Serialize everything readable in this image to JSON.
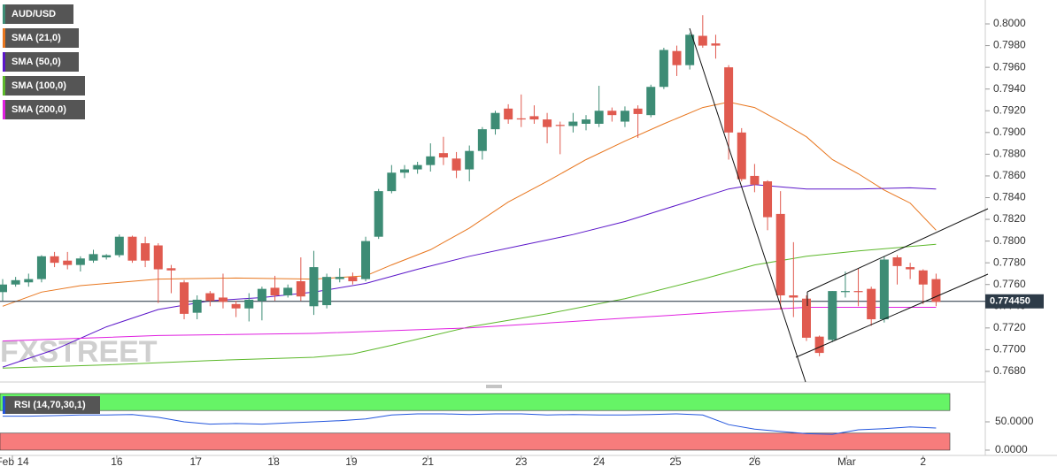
{
  "chart_data": [
    {
      "type": "candlestick",
      "symbol": "AUD/USD",
      "watermark": "FXSTREET",
      "up_color": "#3d8c75",
      "down_color": "#e05a4f",
      "open": [
        0.7753,
        0.776,
        0.7762,
        0.7765,
        0.7786,
        0.7782,
        0.7778,
        0.7782,
        0.7785,
        0.7787,
        0.7804,
        0.7798,
        0.7796,
        0.7775,
        0.7762,
        0.7734,
        0.7752,
        0.7748,
        0.7742,
        0.7738,
        0.7745,
        0.7757,
        0.775,
        0.7763,
        0.774,
        0.7741,
        0.7765,
        0.7767,
        0.7765,
        0.7804,
        0.7846,
        0.7863,
        0.7866,
        0.787,
        0.7881,
        0.7876,
        0.7866,
        0.7883,
        0.7903,
        0.7922,
        0.7913,
        0.7915,
        0.7912,
        0.7907,
        0.7906,
        0.7908,
        0.7908,
        0.792,
        0.791,
        0.7922,
        0.7916,
        0.7942,
        0.7975,
        0.7962,
        0.7989,
        0.7982,
        0.796,
        0.79,
        0.786,
        0.7855,
        0.7825,
        0.775,
        0.7747,
        0.7712,
        0.7709,
        0.7753,
        0.7754,
        0.7756,
        0.7728,
        0.7785,
        0.7776,
        0.7773,
        0.7765
      ],
      "high": [
        0.7765,
        0.7767,
        0.777,
        0.7787,
        0.779,
        0.779,
        0.7786,
        0.7792,
        0.7788,
        0.7806,
        0.7805,
        0.7804,
        0.7798,
        0.7778,
        0.7764,
        0.775,
        0.7754,
        0.777,
        0.7745,
        0.7752,
        0.7758,
        0.7768,
        0.776,
        0.7785,
        0.7791,
        0.777,
        0.7775,
        0.7771,
        0.7804,
        0.7848,
        0.787,
        0.787,
        0.7873,
        0.789,
        0.7896,
        0.7882,
        0.7888,
        0.7905,
        0.792,
        0.7926,
        0.7935,
        0.7925,
        0.7918,
        0.791,
        0.7918,
        0.7916,
        0.7943,
        0.7923,
        0.7924,
        0.7925,
        0.7944,
        0.7978,
        0.798,
        0.7992,
        0.8008,
        0.799,
        0.7962,
        0.7904,
        0.7871,
        0.7856,
        0.7846,
        0.7799,
        0.775,
        0.7713,
        0.7754,
        0.7772,
        0.7775,
        0.7758,
        0.7786,
        0.7787,
        0.778,
        0.7774,
        0.777
      ],
      "low": [
        0.7745,
        0.7758,
        0.7758,
        0.7762,
        0.7776,
        0.7774,
        0.7772,
        0.778,
        0.7783,
        0.7785,
        0.778,
        0.7776,
        0.7743,
        0.7752,
        0.7728,
        0.7728,
        0.774,
        0.7738,
        0.773,
        0.7726,
        0.7727,
        0.7745,
        0.7748,
        0.7745,
        0.7732,
        0.7738,
        0.7762,
        0.776,
        0.7763,
        0.7802,
        0.7844,
        0.7858,
        0.7862,
        0.7864,
        0.787,
        0.7858,
        0.7855,
        0.7875,
        0.7898,
        0.7908,
        0.7905,
        0.7908,
        0.789,
        0.788,
        0.79,
        0.7902,
        0.7905,
        0.791,
        0.7905,
        0.7895,
        0.7914,
        0.794,
        0.7952,
        0.7958,
        0.7978,
        0.7968,
        0.7875,
        0.7855,
        0.7845,
        0.781,
        0.7737,
        0.773,
        0.7708,
        0.7694,
        0.7707,
        0.7748,
        0.774,
        0.7722,
        0.7725,
        0.776,
        0.7765,
        0.7742,
        0.774
      ],
      "close": [
        0.776,
        0.7764,
        0.7765,
        0.7786,
        0.778,
        0.7778,
        0.7784,
        0.7788,
        0.7787,
        0.7804,
        0.7782,
        0.7782,
        0.7774,
        0.7773,
        0.7733,
        0.7746,
        0.7745,
        0.7744,
        0.7738,
        0.7746,
        0.7756,
        0.775,
        0.7757,
        0.7749,
        0.7776,
        0.7767,
        0.7767,
        0.7763,
        0.78,
        0.7846,
        0.7863,
        0.7866,
        0.787,
        0.7878,
        0.7877,
        0.7865,
        0.7883,
        0.7903,
        0.7918,
        0.7912,
        0.7912,
        0.7912,
        0.7905,
        0.7906,
        0.791,
        0.7912,
        0.792,
        0.7916,
        0.792,
        0.7917,
        0.7942,
        0.7976,
        0.7962,
        0.799,
        0.798,
        0.798,
        0.79,
        0.7857,
        0.7852,
        0.7822,
        0.775,
        0.7748,
        0.7711,
        0.7697,
        0.7754,
        0.7754,
        0.7753,
        0.7728,
        0.7783,
        0.7777,
        0.7774,
        0.776,
        0.7744
      ],
      "overlays": [
        {
          "name": "SMA (21,0)",
          "color": "#e8761e",
          "x": [
            0,
            3,
            6,
            12,
            18,
            24,
            28,
            30,
            33,
            36,
            39,
            42,
            45,
            48,
            51,
            54,
            56,
            58,
            60,
            62,
            64,
            66,
            68,
            70,
            72
          ],
          "values": [
            0.774,
            0.7753,
            0.7759,
            0.7765,
            0.7766,
            0.7765,
            0.7768,
            0.7778,
            0.7792,
            0.7812,
            0.7836,
            0.7855,
            0.7875,
            0.7892,
            0.7908,
            0.7923,
            0.7928,
            0.7923,
            0.791,
            0.7896,
            0.7875,
            0.7862,
            0.7847,
            0.7835,
            0.781
          ]
        },
        {
          "name": "SMA (50,0)",
          "color": "#5b16c9",
          "x": [
            0,
            4,
            8,
            12,
            16,
            20,
            24,
            28,
            32,
            36,
            40,
            44,
            48,
            52,
            56,
            58,
            62,
            66,
            70,
            72
          ],
          "values": [
            0.7684,
            0.77,
            0.7721,
            0.7737,
            0.7745,
            0.7748,
            0.7753,
            0.7761,
            0.7774,
            0.7786,
            0.7796,
            0.7806,
            0.7818,
            0.7833,
            0.7848,
            0.7852,
            0.7848,
            0.7848,
            0.7849,
            0.7848
          ]
        },
        {
          "name": "SMA (100,0)",
          "color": "#5cb82a",
          "x": [
            0,
            8,
            16,
            24,
            27,
            30,
            36,
            42,
            48,
            54,
            58,
            62,
            66,
            72
          ],
          "values": [
            0.7683,
            0.7686,
            0.769,
            0.7693,
            0.7696,
            0.7704,
            0.7721,
            0.7733,
            0.7747,
            0.7765,
            0.7778,
            0.7786,
            0.7791,
            0.7797
          ]
        },
        {
          "name": "SMA (200,0)",
          "color": "#e020e0",
          "x": [
            0,
            12,
            24,
            36,
            48,
            56,
            62,
            72
          ],
          "values": [
            0.7708,
            0.7713,
            0.7715,
            0.772,
            0.7729,
            0.7735,
            0.7739,
            0.7739
          ]
        }
      ],
      "last_price": {
        "value": 0.77445,
        "label": "0.774450"
      },
      "ylim": [
        0.76702,
        0.8022
      ],
      "yticks": [
        {
          "value": 0.768,
          "label": "0.7680"
        },
        {
          "value": 0.77,
          "label": "0.7700"
        },
        {
          "value": 0.772,
          "label": "0.7720"
        },
        {
          "value": 0.774,
          "label": "0.7740"
        },
        {
          "value": 0.776,
          "label": "0.7760"
        },
        {
          "value": 0.778,
          "label": "0.7780"
        },
        {
          "value": 0.78,
          "label": "0.7800"
        },
        {
          "value": 0.782,
          "label": "0.7820"
        },
        {
          "value": 0.784,
          "label": "0.7840"
        },
        {
          "value": 0.786,
          "label": "0.7860"
        },
        {
          "value": 0.788,
          "label": "0.7880"
        },
        {
          "value": 0.79,
          "label": "0.7900"
        },
        {
          "value": 0.792,
          "label": "0.7920"
        },
        {
          "value": 0.794,
          "label": "0.7940"
        },
        {
          "value": 0.796,
          "label": "0.7960"
        },
        {
          "value": 0.798,
          "label": "0.7980"
        },
        {
          "value": 0.8,
          "label": "0.8000"
        }
      ],
      "xlim": [
        -0.2,
        75.8
      ],
      "xticks": [
        {
          "value": 0.75,
          "label": "Feb 14"
        },
        {
          "value": 8.8,
          "label": "16"
        },
        {
          "value": 14.9,
          "label": "17"
        },
        {
          "value": 20.9,
          "label": "18"
        },
        {
          "value": 26.9,
          "label": "19"
        },
        {
          "value": 32.8,
          "label": "21"
        },
        {
          "value": 40,
          "label": "23"
        },
        {
          "value": 46,
          "label": "24"
        },
        {
          "value": 51.9,
          "label": "25"
        },
        {
          "value": 58,
          "label": "26"
        },
        {
          "value": 65.1,
          "label": "Mar"
        },
        {
          "value": 71,
          "label": "2"
        }
      ]
    },
    {
      "type": "line",
      "name": "RSI (14,70,30,1)",
      "color": "#2255dd",
      "x": [
        0,
        2,
        4,
        6,
        8,
        10,
        12,
        14,
        16,
        18,
        20,
        22,
        24,
        26,
        28,
        30,
        32,
        34,
        36,
        38,
        40,
        42,
        44,
        46,
        48,
        50,
        52,
        54,
        56,
        58,
        60,
        62,
        64,
        66,
        68,
        70,
        72
      ],
      "values": [
        60,
        60,
        61,
        62,
        62,
        63,
        58,
        50,
        46,
        47,
        46,
        48,
        50,
        52,
        55,
        62,
        64,
        64,
        63,
        64,
        64,
        62,
        63,
        62,
        62,
        63,
        64,
        62,
        45,
        37,
        33,
        29,
        28,
        36,
        38,
        41,
        39
      ],
      "upper_band": [
        70,
        100
      ],
      "upper_color": "#66f466",
      "lower_band": [
        0,
        30
      ],
      "lower_color": "#f77c7c",
      "ylim": [
        -9.4,
        106.25
      ],
      "yticks": [
        {
          "value": 50,
          "label": "50.0000"
        },
        {
          "value": 0,
          "label": "0.0000"
        }
      ]
    }
  ]
}
